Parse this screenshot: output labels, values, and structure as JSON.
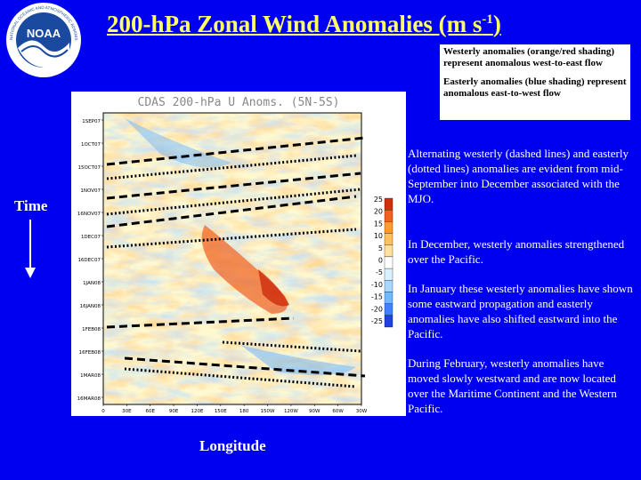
{
  "slide": {
    "title_text": "200-hPa Zonal Wind Anomalies (m s",
    "title_sup": "-1",
    "title_close": ")",
    "logo_text": "NOAA",
    "logo_ring_text": "NATIONAL OCEANIC AND ATMOSPHERIC ADMINISTRATION · U.S. DEPARTMENT OF COMMERCE"
  },
  "legend": {
    "westerly": "Westerly anomalies (orange/red shading) represent anomalous west-to-east flow",
    "easterly": "Easterly anomalies (blue shading) represent anomalous east-to-west flow"
  },
  "plot": {
    "title": "CDAS 200-hPa U Anoms. (5N-5S)",
    "y_labels": [
      "1SEP07",
      "1OCT07",
      "15OCT07",
      "1NOV07",
      "16NOV07",
      "1DEC07",
      "16DEC07",
      "1JAN08",
      "16JAN08",
      "1FEB08",
      "16FEB08",
      "1MAR08",
      "16MAR08"
    ],
    "x_labels": [
      "0",
      "30E",
      "60E",
      "90E",
      "120E",
      "150E",
      "180",
      "150W",
      "120W",
      "90W",
      "60W",
      "30W"
    ],
    "colorbar_labels": [
      "25",
      "20",
      "15",
      "10",
      "5",
      "0",
      "-5",
      "-10",
      "-15",
      "-20",
      "-25"
    ],
    "colors": {
      "warm": [
        "#ffe0a0",
        "#ffc060",
        "#ff9a30",
        "#f06020",
        "#d03010"
      ],
      "cool": [
        "#d8f0ff",
        "#a8d8ff",
        "#70b8ff",
        "#4080ff",
        "#2040e0"
      ],
      "background": "#fff8d0"
    }
  },
  "axis_labels": {
    "time": "Time",
    "longitude": "Longitude"
  },
  "notes": [
    "Alternating westerly (dashed lines) and easterly (dotted lines) anomalies are evident from mid-September into December associated with the MJO.",
    "In December, westerly anomalies strengthened over the Pacific.",
    "In January these westerly anomalies have shown some eastward propagation and easterly anomalies have also shifted eastward into the Pacific.",
    "During February, westerly anomalies have moved slowly westward and are now located over the Maritime Continent and the Western Pacific."
  ]
}
